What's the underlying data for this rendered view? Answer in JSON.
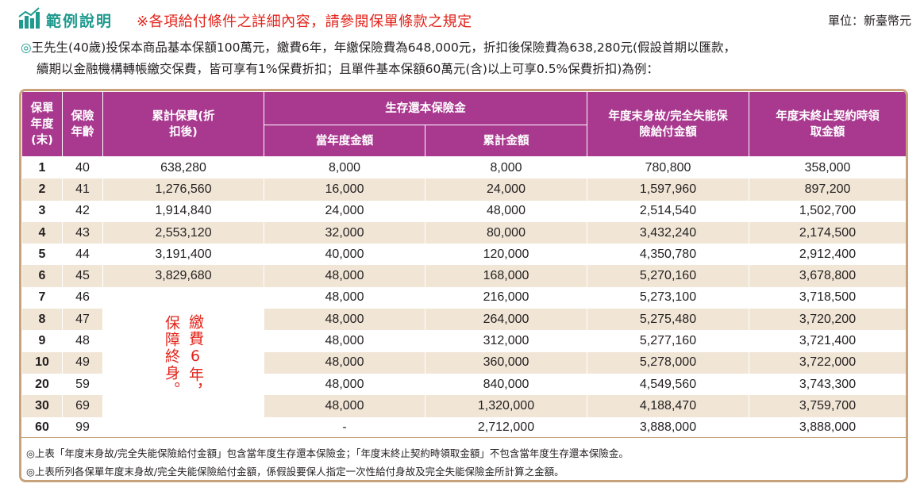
{
  "header": {
    "title": "範例說明",
    "note": "※各項給付條件之詳細內容，請參閱保單條款之規定",
    "unit": "單位：新臺幣元"
  },
  "example": {
    "mark": "◎",
    "line1": "王先生(40歲)投保本商品基本保額100萬元，繳費6年，年繳保險費為648,000元，折扣後保險費為638,280元(假設首期以匯款，",
    "line2": "續期以金融機構轉帳繳交保費，皆可享有1%保費折扣；且單件基本保額60萬元(含)以上可享0.5%保費折扣)為例："
  },
  "table": {
    "headers": {
      "policy_year": "保單年度(末)",
      "age": "保險年齡",
      "cumulative_premium": "累計保費(折扣後)",
      "survival_benefit": "生存還本保險金",
      "current_year_amount": "當年度金額",
      "cumulative_amount": "累計金額",
      "death_benefit": "年度末身故/完全失能保險給付金額",
      "surrender_value": "年度末終止契約時領取金額"
    },
    "note_col1": "繳費6年，",
    "note_col2": "保障終身。",
    "rows": [
      {
        "year": "1",
        "age": "40",
        "premium": "638,280",
        "current": "8,000",
        "cumulative": "8,000",
        "death": "780,800",
        "surrender": "358,000"
      },
      {
        "year": "2",
        "age": "41",
        "premium": "1,276,560",
        "current": "16,000",
        "cumulative": "24,000",
        "death": "1,597,960",
        "surrender": "897,200"
      },
      {
        "year": "3",
        "age": "42",
        "premium": "1,914,840",
        "current": "24,000",
        "cumulative": "48,000",
        "death": "2,514,540",
        "surrender": "1,502,700"
      },
      {
        "year": "4",
        "age": "43",
        "premium": "2,553,120",
        "current": "32,000",
        "cumulative": "80,000",
        "death": "3,432,240",
        "surrender": "2,174,500"
      },
      {
        "year": "5",
        "age": "44",
        "premium": "3,191,400",
        "current": "40,000",
        "cumulative": "120,000",
        "death": "4,350,780",
        "surrender": "2,912,400"
      },
      {
        "year": "6",
        "age": "45",
        "premium": "3,829,680",
        "current": "48,000",
        "cumulative": "168,000",
        "death": "5,270,160",
        "surrender": "3,678,800"
      },
      {
        "year": "7",
        "age": "46",
        "premium": "",
        "current": "48,000",
        "cumulative": "216,000",
        "death": "5,273,100",
        "surrender": "3,718,500"
      },
      {
        "year": "8",
        "age": "47",
        "premium": "",
        "current": "48,000",
        "cumulative": "264,000",
        "death": "5,275,480",
        "surrender": "3,720,200"
      },
      {
        "year": "9",
        "age": "48",
        "premium": "",
        "current": "48,000",
        "cumulative": "312,000",
        "death": "5,277,160",
        "surrender": "3,721,400"
      },
      {
        "year": "10",
        "age": "49",
        "premium": "",
        "current": "48,000",
        "cumulative": "360,000",
        "death": "5,278,000",
        "surrender": "3,722,000"
      },
      {
        "year": "20",
        "age": "59",
        "premium": "",
        "current": "48,000",
        "cumulative": "840,000",
        "death": "4,549,560",
        "surrender": "3,743,300"
      },
      {
        "year": "30",
        "age": "69",
        "premium": "",
        "current": "48,000",
        "cumulative": "1,320,000",
        "death": "4,188,470",
        "surrender": "3,759,700"
      },
      {
        "year": "60",
        "age": "99",
        "premium": "",
        "current": "-",
        "cumulative": "2,712,000",
        "death": "3,888,000",
        "surrender": "3,888,000"
      }
    ]
  },
  "footnotes": [
    "◎上表「年度末身故/完全失能保險給付金額」包含當年度生存還本保險金；「年度末終止契約時領取金額」不包含當年度生存還本保險金。",
    "◎上表所列各保單年度末身故/完全失能保險給付金額，係假設要保人指定一次性給付身故及完全失能保險金所計算之金額。"
  ],
  "colors": {
    "header_bg": "#a8398f",
    "title_teal": "#1f9a8f",
    "note_red": "#e2231a",
    "stripe": "#f1e6d6",
    "frame": "#c8a27a"
  }
}
